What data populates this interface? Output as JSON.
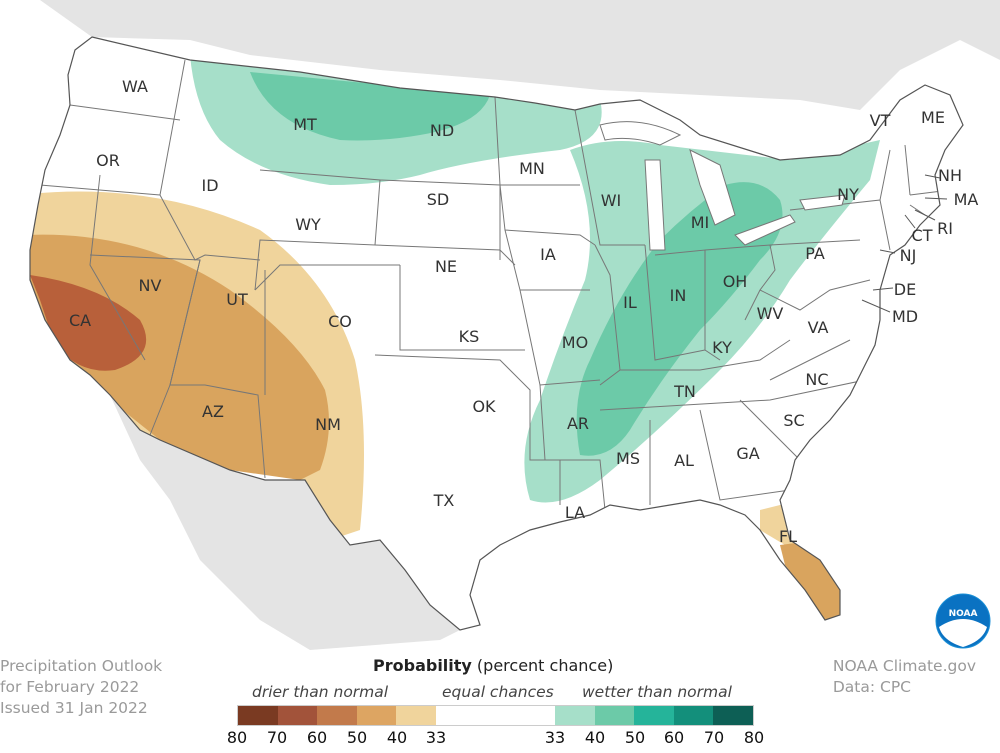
{
  "map": {
    "states": [
      {
        "abbr": "WA"
      },
      {
        "abbr": "OR"
      },
      {
        "abbr": "CA"
      },
      {
        "abbr": "ID"
      },
      {
        "abbr": "NV"
      },
      {
        "abbr": "MT"
      },
      {
        "abbr": "WY"
      },
      {
        "abbr": "UT"
      },
      {
        "abbr": "AZ"
      },
      {
        "abbr": "CO"
      },
      {
        "abbr": "NM"
      },
      {
        "abbr": "ND"
      },
      {
        "abbr": "SD"
      },
      {
        "abbr": "NE"
      },
      {
        "abbr": "KS"
      },
      {
        "abbr": "OK"
      },
      {
        "abbr": "TX"
      },
      {
        "abbr": "MN"
      },
      {
        "abbr": "IA"
      },
      {
        "abbr": "MO"
      },
      {
        "abbr": "AR"
      },
      {
        "abbr": "LA"
      },
      {
        "abbr": "WI"
      },
      {
        "abbr": "IL"
      },
      {
        "abbr": "MS"
      },
      {
        "abbr": "MI"
      },
      {
        "abbr": "IN"
      },
      {
        "abbr": "KY"
      },
      {
        "abbr": "TN"
      },
      {
        "abbr": "AL"
      },
      {
        "abbr": "OH"
      },
      {
        "abbr": "WV"
      },
      {
        "abbr": "GA"
      },
      {
        "abbr": "FL"
      },
      {
        "abbr": "SC"
      },
      {
        "abbr": "NC"
      },
      {
        "abbr": "VA"
      },
      {
        "abbr": "PA"
      },
      {
        "abbr": "NY"
      },
      {
        "abbr": "VT"
      },
      {
        "abbr": "ME"
      },
      {
        "abbr": "NH"
      },
      {
        "abbr": "MA"
      },
      {
        "abbr": "RI"
      },
      {
        "abbr": "CT"
      },
      {
        "abbr": "NJ"
      },
      {
        "abbr": "DE"
      },
      {
        "abbr": "MD"
      }
    ],
    "colors": {
      "dry_40": "#f0d49c",
      "dry_50": "#d9a45e",
      "dry_60": "#b8603a",
      "wet_40": "#a6dfc9",
      "wet_50": "#6ccaa8",
      "land_outside": "#e4e4e4",
      "ocean": "#ffffff"
    }
  },
  "footer": {
    "title_line1": "Precipitation Outlook",
    "title_line2": "for February 2022",
    "issued": "Issued 31 Jan 2022",
    "credit_line1": "NOAA Climate.gov",
    "credit_line2": "Data: CPC"
  },
  "legend": {
    "title_bold": "Probability",
    "title_rest": " (percent chance)",
    "drier_label": "drier than normal",
    "equal_label": "equal chances",
    "wetter_label": "wetter than normal",
    "colors": [
      "#7a3a22",
      "#a2533a",
      "#c27a4b",
      "#dda562",
      "#f0d49c",
      "#ffffff",
      "#a6dfc9",
      "#6ccaa8",
      "#25b49a",
      "#138f7b",
      "#0d5f55"
    ],
    "ticks": [
      "80",
      "70",
      "60",
      "50",
      "40",
      "33",
      "33",
      "40",
      "50",
      "60",
      "70",
      "80"
    ]
  },
  "logo": {
    "text": "NOAA"
  }
}
